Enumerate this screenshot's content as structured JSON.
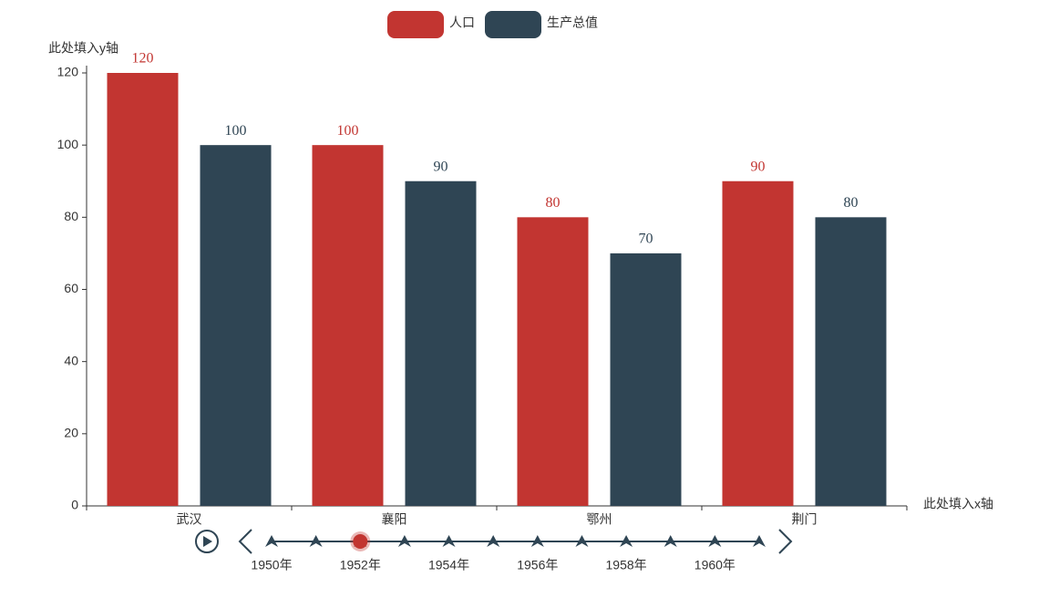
{
  "chart_data": {
    "type": "bar",
    "y_axis_name": "此处填入y轴",
    "x_axis_name": "此处填入x轴",
    "categories": [
      "武汉",
      "襄阳",
      "鄂州",
      "荆门"
    ],
    "series": [
      {
        "name": "人口",
        "color": "#c23531",
        "values": [
          120,
          100,
          80,
          90
        ]
      },
      {
        "name": "生产总值",
        "color": "#2f4554",
        "values": [
          100,
          90,
          70,
          80
        ]
      }
    ],
    "ylim": [
      0,
      120
    ],
    "yticks": [
      0,
      20,
      40,
      60,
      80,
      100,
      120
    ],
    "timeline": {
      "labels": [
        "1950年",
        null,
        "1952年",
        null,
        "1954年",
        null,
        "1956年",
        null,
        "1958年",
        null,
        "1960年",
        null
      ],
      "current": 2,
      "color": "#2f4554",
      "active_color": "#c23531"
    }
  }
}
